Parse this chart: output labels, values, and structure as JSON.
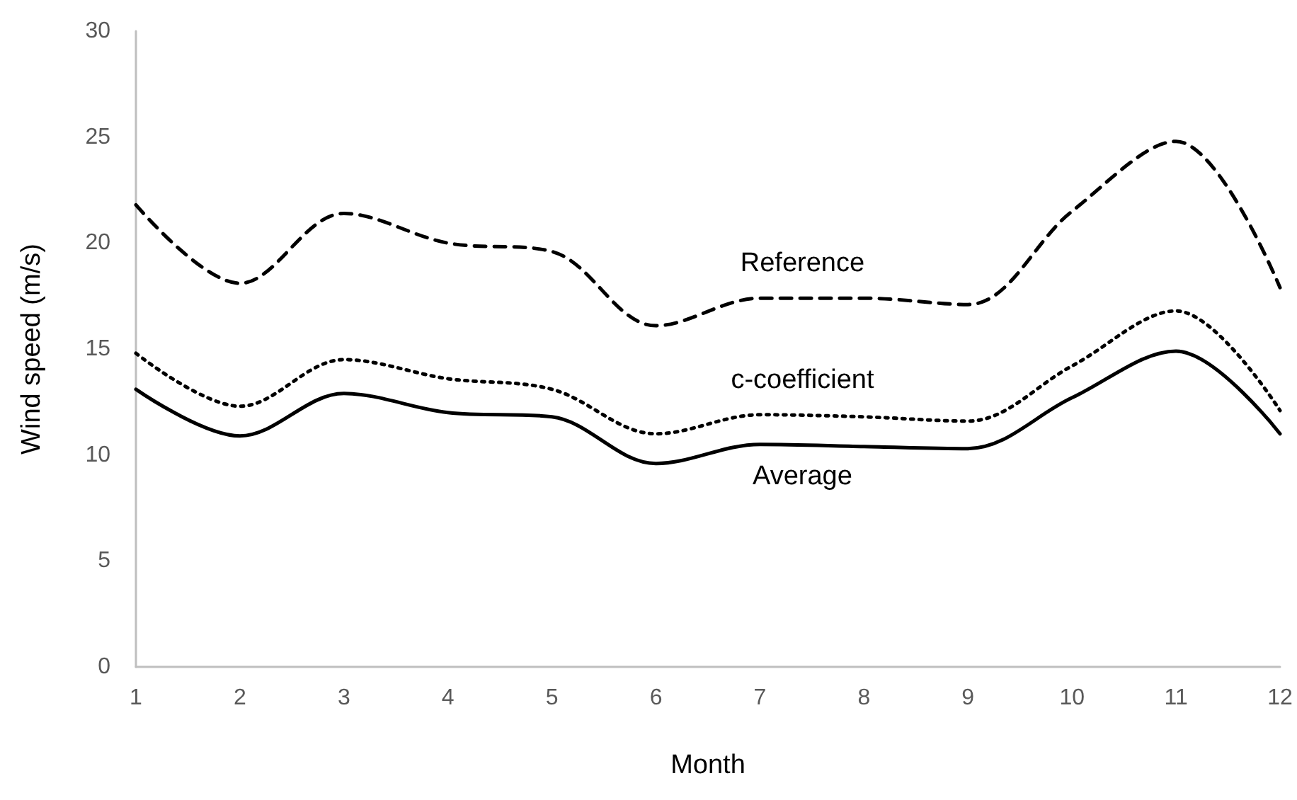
{
  "chart_data": {
    "type": "line",
    "xlabel": "Month",
    "ylabel": "Wind speed (m/s)",
    "x": [
      1,
      2,
      3,
      4,
      5,
      6,
      7,
      8,
      9,
      10,
      11,
      12
    ],
    "xlim": [
      1,
      12
    ],
    "xticks": [
      1,
      2,
      3,
      4,
      5,
      6,
      7,
      8,
      9,
      10,
      11,
      12
    ],
    "series": [
      {
        "name": "Reference",
        "color": "#000000",
        "line_style": "dashed",
        "values": [
          21.8,
          18.1,
          21.4,
          20.0,
          19.6,
          16.1,
          17.4,
          17.4,
          17.1,
          21.5,
          24.8,
          17.9
        ]
      },
      {
        "name": "c-coefficient",
        "color": "#000000",
        "line_style": "dotted",
        "values": [
          14.8,
          12.3,
          14.5,
          13.6,
          13.1,
          11.0,
          11.9,
          11.8,
          11.6,
          14.2,
          16.8,
          12.1
        ]
      },
      {
        "name": "Average",
        "color": "#000000",
        "line_style": "solid",
        "values": [
          13.1,
          10.9,
          12.9,
          12.0,
          11.8,
          9.6,
          10.5,
          10.4,
          10.3,
          12.7,
          14.9,
          11.0
        ]
      }
    ],
    "ylim": [
      0,
      30
    ],
    "yticks": [
      0,
      5,
      10,
      15,
      20,
      25,
      30
    ],
    "grid": false,
    "legend": false,
    "marker": "none"
  }
}
